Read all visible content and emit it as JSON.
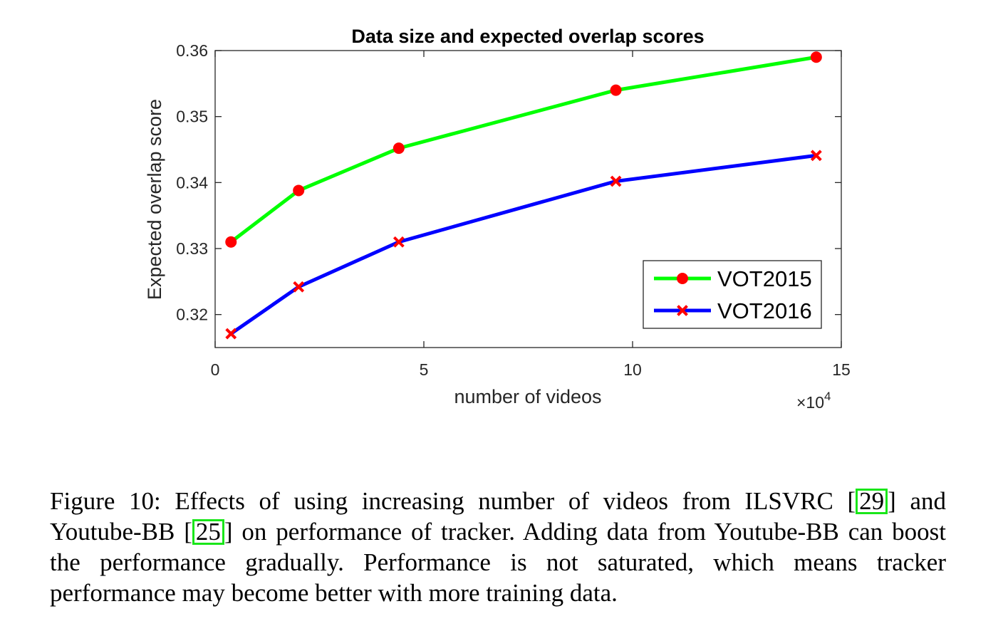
{
  "chart_data": {
    "type": "line",
    "title": "Data size and expected overlap scores",
    "xlabel": "number of videos",
    "ylabel": "Expected overlap score",
    "x_multiplier_label": "×10",
    "x_multiplier_exponent": "4",
    "xlim": [
      0,
      15
    ],
    "ylim": [
      0.315,
      0.36
    ],
    "x_ticks": [
      0,
      5,
      10,
      15
    ],
    "x_tick_labels": [
      "0",
      "5",
      "10",
      "15"
    ],
    "y_ticks": [
      0.32,
      0.33,
      0.34,
      0.35,
      0.36
    ],
    "y_tick_labels": [
      "0.32",
      "0.33",
      "0.34",
      "0.35",
      "0.36"
    ],
    "grid": false,
    "legend_position": "bottom-right",
    "x": [
      0.38,
      2.0,
      4.4,
      9.6,
      14.4
    ],
    "series": [
      {
        "name": "VOT2015",
        "color": "#00ff00",
        "marker": "circle",
        "marker_color": "#ff0000",
        "values": [
          0.331,
          0.3388,
          0.3452,
          0.354,
          0.359
        ]
      },
      {
        "name": "VOT2016",
        "color": "#0000ff",
        "marker": "x",
        "marker_color": "#ff0000",
        "values": [
          0.3171,
          0.3242,
          0.331,
          0.3402,
          0.3441
        ]
      }
    ]
  },
  "caption": {
    "lead": "Figure 10:  Effects of using increasing number of videos from ILSVRC [",
    "ref1": "29",
    "mid1": "] and Youtube-BB [",
    "ref2": "25",
    "tail": "] on performance of tracker.  Adding data from Youtube-BB can boost the performance gradually. Performance is not saturated, which means tracker performance may become better with more training data."
  }
}
